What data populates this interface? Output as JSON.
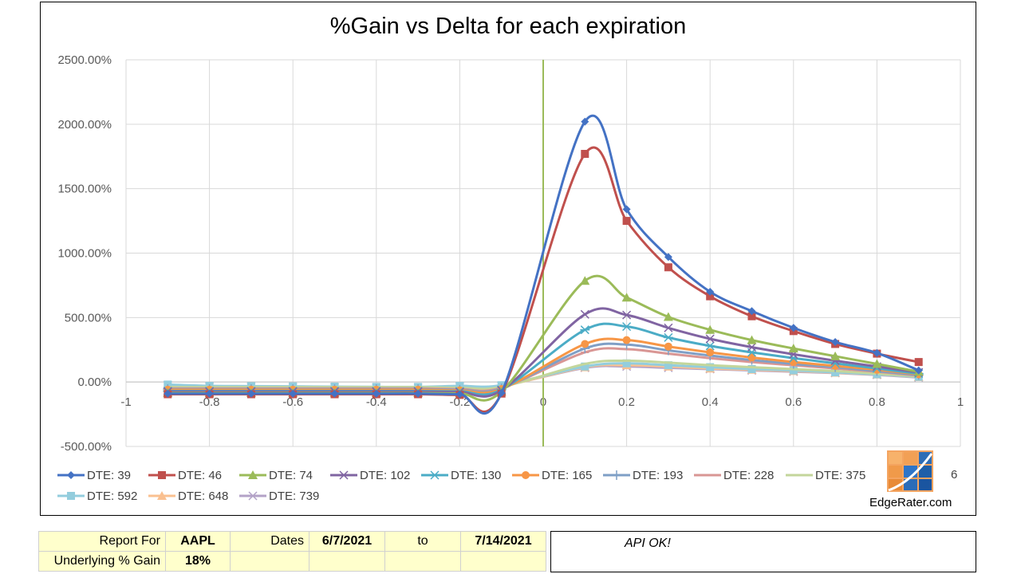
{
  "chart_data": {
    "type": "line",
    "title": "%Gain vs Delta for each expiration",
    "xlabel": "",
    "ylabel": "",
    "xlim": [
      -1,
      1
    ],
    "ylim": [
      -500,
      2500
    ],
    "x_ticks": [
      "-1",
      "-0.8",
      "-0.6",
      "-0.4",
      "-0.2",
      "0",
      "0.2",
      "0.4",
      "0.6",
      "0.8",
      "1"
    ],
    "y_ticks": [
      "2500.00%",
      "2000.00%",
      "1500.00%",
      "1000.00%",
      "500.00%",
      "0.00%",
      "-500.00%"
    ],
    "grid": true,
    "legend_position": "bottom",
    "x": [
      -0.9,
      -0.8,
      -0.7,
      -0.6,
      -0.5,
      -0.4,
      -0.3,
      -0.2,
      -0.1,
      0.1,
      0.2,
      0.3,
      0.4,
      0.5,
      0.6,
      0.7,
      0.8,
      0.9
    ],
    "series": [
      {
        "name": "DTE: 39",
        "color": "#4472c4",
        "marker": "diamond",
        "values": [
          -90,
          -90,
          -90,
          -90,
          -90,
          -90,
          -90,
          -95,
          -85,
          2020,
          1340,
          970,
          700,
          550,
          420,
          310,
          225,
          90
        ]
      },
      {
        "name": "DTE: 46",
        "color": "#c0504d",
        "marker": "square",
        "values": [
          -95,
          -95,
          -95,
          -95,
          -95,
          -95,
          -95,
          -100,
          -90,
          1770,
          1250,
          890,
          665,
          510,
          395,
          295,
          220,
          155
        ]
      },
      {
        "name": "DTE: 74",
        "color": "#9bbb59",
        "marker": "triangle",
        "values": [
          -85,
          -85,
          -85,
          -85,
          -85,
          -85,
          -85,
          -88,
          -75,
          785,
          655,
          505,
          405,
          325,
          260,
          200,
          140,
          80
        ]
      },
      {
        "name": "DTE: 102",
        "color": "#8064a2",
        "marker": "x",
        "values": [
          -75,
          -75,
          -75,
          -75,
          -75,
          -75,
          -75,
          -78,
          -65,
          525,
          520,
          420,
          335,
          270,
          215,
          165,
          120,
          75
        ]
      },
      {
        "name": "DTE: 130",
        "color": "#4bacc6",
        "marker": "star",
        "values": [
          -70,
          -70,
          -70,
          -70,
          -70,
          -70,
          -70,
          -72,
          -60,
          405,
          430,
          345,
          280,
          230,
          185,
          145,
          105,
          65
        ]
      },
      {
        "name": "DTE: 165",
        "color": "#f79646",
        "marker": "circle",
        "values": [
          -60,
          -60,
          -60,
          -60,
          -60,
          -60,
          -60,
          -65,
          -55,
          295,
          325,
          275,
          230,
          190,
          155,
          125,
          95,
          60
        ]
      },
      {
        "name": "DTE: 193",
        "color": "#7f9fc6",
        "marker": "plus",
        "values": [
          -55,
          -55,
          -55,
          -55,
          -55,
          -55,
          -55,
          -60,
          -50,
          260,
          290,
          245,
          205,
          170,
          140,
          115,
          85,
          55
        ]
      },
      {
        "name": "DTE: 228",
        "color": "#d99694",
        "marker": "dash",
        "values": [
          -50,
          -50,
          -50,
          -50,
          -50,
          -50,
          -50,
          -55,
          -45,
          230,
          255,
          220,
          185,
          155,
          130,
          105,
          80,
          50
        ]
      },
      {
        "name": "DTE: 375",
        "color": "#c3d69b",
        "marker": "none",
        "values": [
          -40,
          -40,
          -40,
          -40,
          -40,
          -40,
          -40,
          -45,
          -38,
          140,
          165,
          150,
          130,
          115,
          100,
          85,
          65,
          45
        ]
      },
      {
        "name": "DTE: 592",
        "color": "#93cddd",
        "marker": "square",
        "values": [
          -20,
          -30,
          -32,
          -34,
          -36,
          -38,
          -38,
          -30,
          -25,
          120,
          145,
          130,
          115,
          100,
          90,
          75,
          60,
          40
        ]
      },
      {
        "name": "DTE: 648",
        "color": "#fac090",
        "marker": "triangle",
        "values": [
          -30,
          -38,
          -40,
          -42,
          -44,
          -46,
          -46,
          -38,
          -32,
          115,
          130,
          120,
          105,
          95,
          85,
          72,
          58,
          38
        ]
      },
      {
        "name": "DTE: 739",
        "color": "#b3a2c7",
        "marker": "x",
        "values": [
          -25,
          -35,
          -38,
          -40,
          -42,
          -44,
          -44,
          -36,
          -30,
          110,
          120,
          110,
          100,
          90,
          80,
          70,
          55,
          35
        ]
      }
    ],
    "vertical_line_x": 0,
    "vertical_line_color": "#9bbb59"
  },
  "stray_label": "6",
  "logo_text": "EdgeRater.com",
  "report": {
    "report_for_label": "Report For",
    "ticker": "AAPL",
    "dates_label": "Dates",
    "start_date": "6/7/2021",
    "to_label": "to",
    "end_date": "7/14/2021",
    "underlying_label": "Underlying % Gain",
    "underlying_value": "18%",
    "status": "API OK!"
  }
}
